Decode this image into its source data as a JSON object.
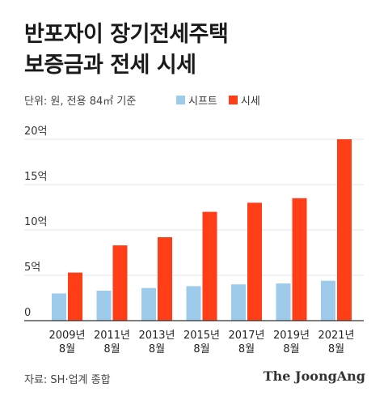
{
  "title_line1": "반포자이 장기전세주택",
  "title_line2": "보증금과 전세 시세",
  "unit_note": "단위: 원, 전용 84㎡ 기준",
  "source": "자료: SH·업계 종합",
  "logo": "The JoongAng",
  "colors": {
    "shift": "#9ecbec",
    "market": "#ff3d17",
    "axis": "#333333",
    "grid": "#e6e6e6"
  },
  "chart_data": {
    "type": "bar",
    "categories": [
      [
        "2009년",
        "8월"
      ],
      [
        "2011년",
        "8월"
      ],
      [
        "2013년",
        "8월"
      ],
      [
        "2015년",
        "8월"
      ],
      [
        "2017년",
        "8월"
      ],
      [
        "2019년",
        "8월"
      ],
      [
        "2021년",
        "8월"
      ]
    ],
    "series": [
      {
        "name": "시프트",
        "values": [
          3.0,
          3.3,
          3.6,
          3.8,
          4.0,
          4.1,
          4.4
        ]
      },
      {
        "name": "시세",
        "values": [
          5.3,
          8.3,
          9.2,
          12.0,
          13.0,
          13.5,
          20.0
        ]
      }
    ],
    "yticks": [
      "0",
      "5억",
      "10억",
      "15억",
      "20억"
    ],
    "ytick_values": [
      0,
      5,
      10,
      15,
      20
    ],
    "ylim": [
      0,
      20
    ],
    "grid": true,
    "legend": "top"
  }
}
